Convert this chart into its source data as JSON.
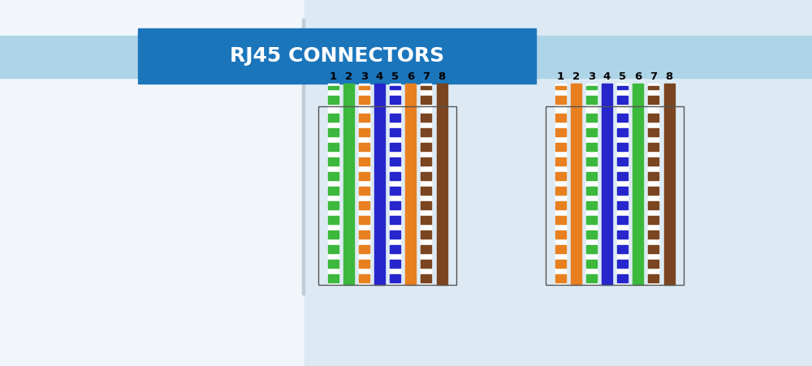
{
  "title": "RJ45 CONNECTORS",
  "title_bg": "#1b75bb",
  "title_text_color": "#ffffff",
  "banner_bg": "#aed4e8",
  "bg_color_left": "#f0f4f8",
  "bg_color_right": "#dce8f0",
  "wire_labels": [
    "1",
    "2",
    "3",
    "4",
    "5",
    "6",
    "7",
    "8"
  ],
  "left_colors": [
    "#3cb83c",
    "#3cb83c",
    "#e88020",
    "#2626cc",
    "#2626cc",
    "#e88020",
    "#7a4520",
    "#7a4520"
  ],
  "left_striped": [
    true,
    false,
    true,
    false,
    true,
    false,
    true,
    false
  ],
  "right_colors": [
    "#e88020",
    "#e88020",
    "#3cb83c",
    "#2626cc",
    "#2626cc",
    "#3cb83c",
    "#7a4520",
    "#7a4520"
  ],
  "right_striped": [
    true,
    false,
    true,
    false,
    true,
    false,
    true,
    false
  ]
}
